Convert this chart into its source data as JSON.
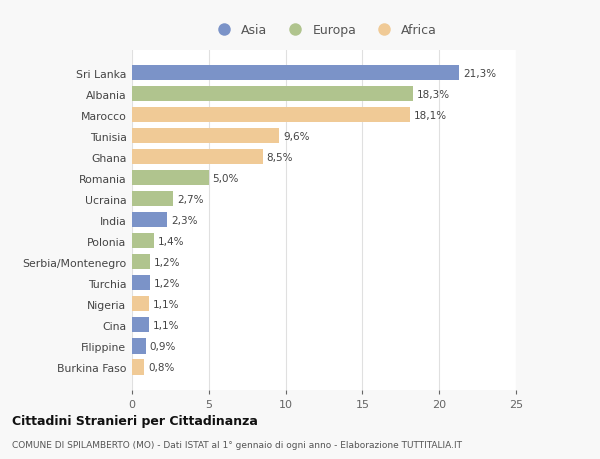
{
  "countries": [
    "Sri Lanka",
    "Albania",
    "Marocco",
    "Tunisia",
    "Ghana",
    "Romania",
    "Ucraina",
    "India",
    "Polonia",
    "Serbia/Montenegro",
    "Turchia",
    "Nigeria",
    "Cina",
    "Filippine",
    "Burkina Faso"
  ],
  "values": [
    21.3,
    18.3,
    18.1,
    9.6,
    8.5,
    5.0,
    2.7,
    2.3,
    1.4,
    1.2,
    1.2,
    1.1,
    1.1,
    0.9,
    0.8
  ],
  "labels": [
    "21,3%",
    "18,3%",
    "18,1%",
    "9,6%",
    "8,5%",
    "5,0%",
    "2,7%",
    "2,3%",
    "1,4%",
    "1,2%",
    "1,2%",
    "1,1%",
    "1,1%",
    "0,9%",
    "0,8%"
  ],
  "continents": [
    "Asia",
    "Europa",
    "Africa",
    "Africa",
    "Africa",
    "Europa",
    "Europa",
    "Asia",
    "Europa",
    "Europa",
    "Asia",
    "Africa",
    "Asia",
    "Asia",
    "Africa"
  ],
  "colors": {
    "Asia": "#7b93c8",
    "Europa": "#b0c48e",
    "Africa": "#f0ca96"
  },
  "legend_labels": [
    "Asia",
    "Europa",
    "Africa"
  ],
  "title1": "Cittadini Stranieri per Cittadinanza",
  "title2": "COMUNE DI SPILAMBERTO (MO) - Dati ISTAT al 1° gennaio di ogni anno - Elaborazione TUTTITALIA.IT",
  "xlim": [
    0,
    25
  ],
  "xticks": [
    0,
    5,
    10,
    15,
    20,
    25
  ],
  "background_color": "#f8f8f8",
  "bar_background": "#ffffff"
}
